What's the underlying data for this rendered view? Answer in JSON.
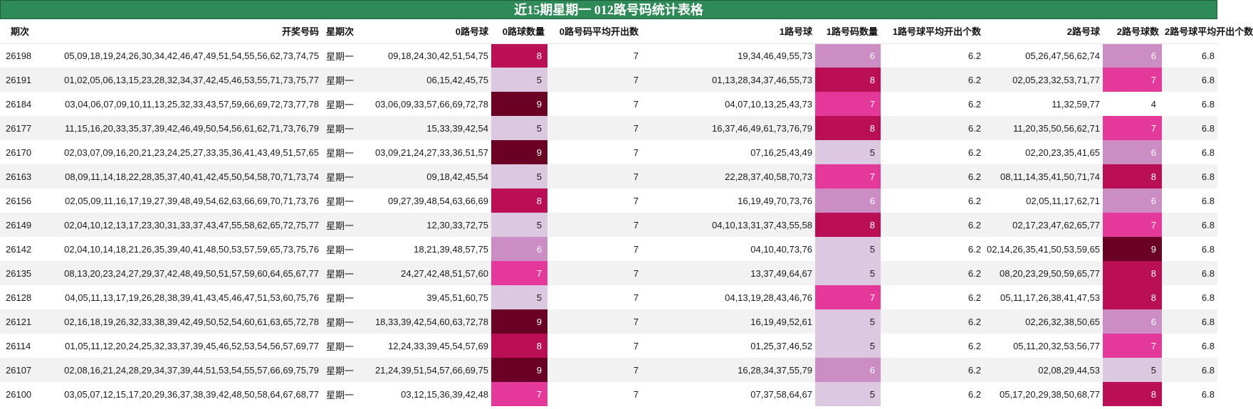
{
  "title": "近15期星期一 012路号码统计表格",
  "headers": [
    "期次",
    "开奖号码",
    "星期次",
    "0路号球",
    "0路球数量",
    "0路号码平均开出数",
    "1路号球",
    "1路号码数量",
    "1路号球平均开出个数",
    "2路号球",
    "2路号球数",
    "2路号球平均开出个数"
  ],
  "heat_colors": {
    "4": "#ffffff",
    "5": "#dcc8e0",
    "6": "#cc8cc4",
    "7": "#e4399a",
    "8": "#bb0f55",
    "9": "#6a0023"
  },
  "heat_text_light": "#ffffff",
  "heat_text_dark": "#1a1a1a",
  "rows": [
    {
      "period": "26198",
      "numbers": "05,09,18,19,24,26,30,34,42,46,47,49,51,54,55,56,62,73,74,75",
      "weekday": "星期一",
      "r0": "09,18,24,30,42,51,54,75",
      "r0_count": "8",
      "r0_avg": "7",
      "r1": "19,34,46,49,55,73",
      "r1_count": "6",
      "r1_avg": "6.2",
      "r2": "05,26,47,56,62,74",
      "r2_count": "6",
      "r2_avg": "6.8"
    },
    {
      "period": "26191",
      "numbers": "01,02,05,06,13,15,23,28,32,34,37,42,45,46,53,55,71,73,75,77",
      "weekday": "星期一",
      "r0": "06,15,42,45,75",
      "r0_count": "5",
      "r0_avg": "7",
      "r1": "01,13,28,34,37,46,55,73",
      "r1_count": "8",
      "r1_avg": "6.2",
      "r2": "02,05,23,32,53,71,77",
      "r2_count": "7",
      "r2_avg": "6.8"
    },
    {
      "period": "26184",
      "numbers": "03,04,06,07,09,10,11,13,25,32,33,43,57,59,66,69,72,73,77,78",
      "weekday": "星期一",
      "r0": "03,06,09,33,57,66,69,72,78",
      "r0_count": "9",
      "r0_avg": "7",
      "r1": "04,07,10,13,25,43,73",
      "r1_count": "7",
      "r1_avg": "6.2",
      "r2": "11,32,59,77",
      "r2_count": "4",
      "r2_avg": "6.8"
    },
    {
      "period": "26177",
      "numbers": "11,15,16,20,33,35,37,39,42,46,49,50,54,56,61,62,71,73,76,79",
      "weekday": "星期一",
      "r0": "15,33,39,42,54",
      "r0_count": "5",
      "r0_avg": "7",
      "r1": "16,37,46,49,61,73,76,79",
      "r1_count": "8",
      "r1_avg": "6.2",
      "r2": "11,20,35,50,56,62,71",
      "r2_count": "7",
      "r2_avg": "6.8"
    },
    {
      "period": "26170",
      "numbers": "02,03,07,09,16,20,21,23,24,25,27,33,35,36,41,43,49,51,57,65",
      "weekday": "星期一",
      "r0": "03,09,21,24,27,33,36,51,57",
      "r0_count": "9",
      "r0_avg": "7",
      "r1": "07,16,25,43,49",
      "r1_count": "5",
      "r1_avg": "6.2",
      "r2": "02,20,23,35,41,65",
      "r2_count": "6",
      "r2_avg": "6.8"
    },
    {
      "period": "26163",
      "numbers": "08,09,11,14,18,22,28,35,37,40,41,42,45,50,54,58,70,71,73,74",
      "weekday": "星期一",
      "r0": "09,18,42,45,54",
      "r0_count": "5",
      "r0_avg": "7",
      "r1": "22,28,37,40,58,70,73",
      "r1_count": "7",
      "r1_avg": "6.2",
      "r2": "08,11,14,35,41,50,71,74",
      "r2_count": "8",
      "r2_avg": "6.8"
    },
    {
      "period": "26156",
      "numbers": "02,05,09,11,16,17,19,27,39,48,49,54,62,63,66,69,70,71,73,76",
      "weekday": "星期一",
      "r0": "09,27,39,48,54,63,66,69",
      "r0_count": "8",
      "r0_avg": "7",
      "r1": "16,19,49,70,73,76",
      "r1_count": "6",
      "r1_avg": "6.2",
      "r2": "02,05,11,17,62,71",
      "r2_count": "6",
      "r2_avg": "6.8"
    },
    {
      "period": "26149",
      "numbers": "02,04,10,12,13,17,23,30,31,33,37,43,47,55,58,62,65,72,75,77",
      "weekday": "星期一",
      "r0": "12,30,33,72,75",
      "r0_count": "5",
      "r0_avg": "7",
      "r1": "04,10,13,31,37,43,55,58",
      "r1_count": "8",
      "r1_avg": "6.2",
      "r2": "02,17,23,47,62,65,77",
      "r2_count": "7",
      "r2_avg": "6.8"
    },
    {
      "period": "26142",
      "numbers": "02,04,10,14,18,21,26,35,39,40,41,48,50,53,57,59,65,73,75,76",
      "weekday": "星期一",
      "r0": "18,21,39,48,57,75",
      "r0_count": "6",
      "r0_avg": "7",
      "r1": "04,10,40,73,76",
      "r1_count": "5",
      "r1_avg": "6.2",
      "r2": "02,14,26,35,41,50,53,59,65",
      "r2_count": "9",
      "r2_avg": "6.8"
    },
    {
      "period": "26135",
      "numbers": "08,13,20,23,24,27,29,37,42,48,49,50,51,57,59,60,64,65,67,77",
      "weekday": "星期一",
      "r0": "24,27,42,48,51,57,60",
      "r0_count": "7",
      "r0_avg": "7",
      "r1": "13,37,49,64,67",
      "r1_count": "5",
      "r1_avg": "6.2",
      "r2": "08,20,23,29,50,59,65,77",
      "r2_count": "8",
      "r2_avg": "6.8"
    },
    {
      "period": "26128",
      "numbers": "04,05,11,13,17,19,26,28,38,39,41,43,45,46,47,51,53,60,75,76",
      "weekday": "星期一",
      "r0": "39,45,51,60,75",
      "r0_count": "5",
      "r0_avg": "7",
      "r1": "04,13,19,28,43,46,76",
      "r1_count": "7",
      "r1_avg": "6.2",
      "r2": "05,11,17,26,38,41,47,53",
      "r2_count": "8",
      "r2_avg": "6.8"
    },
    {
      "period": "26121",
      "numbers": "02,16,18,19,26,32,33,38,39,42,49,50,52,54,60,61,63,65,72,78",
      "weekday": "星期一",
      "r0": "18,33,39,42,54,60,63,72,78",
      "r0_count": "9",
      "r0_avg": "7",
      "r1": "16,19,49,52,61",
      "r1_count": "5",
      "r1_avg": "6.2",
      "r2": "02,26,32,38,50,65",
      "r2_count": "6",
      "r2_avg": "6.8"
    },
    {
      "period": "26114",
      "numbers": "01,05,11,12,20,24,25,32,33,37,39,45,46,52,53,54,56,57,69,77",
      "weekday": "星期一",
      "r0": "12,24,33,39,45,54,57,69",
      "r0_count": "8",
      "r0_avg": "7",
      "r1": "01,25,37,46,52",
      "r1_count": "5",
      "r1_avg": "6.2",
      "r2": "05,11,20,32,53,56,77",
      "r2_count": "7",
      "r2_avg": "6.8"
    },
    {
      "period": "26107",
      "numbers": "02,08,16,21,24,28,29,34,37,39,44,51,53,54,55,57,66,69,75,79",
      "weekday": "星期一",
      "r0": "21,24,39,51,54,57,66,69,75",
      "r0_count": "9",
      "r0_avg": "7",
      "r1": "16,28,34,37,55,79",
      "r1_count": "6",
      "r1_avg": "6.2",
      "r2": "02,08,29,44,53",
      "r2_count": "5",
      "r2_avg": "6.8"
    },
    {
      "period": "26100",
      "numbers": "03,05,07,12,15,17,20,29,36,37,38,39,42,48,50,58,64,67,68,77",
      "weekday": "星期一",
      "r0": "03,12,15,36,39,42,48",
      "r0_count": "7",
      "r0_avg": "7",
      "r1": "07,37,58,64,67",
      "r1_count": "5",
      "r1_avg": "6.2",
      "r2": "05,17,20,29,38,50,68,77",
      "r2_count": "8",
      "r2_avg": "6.8"
    }
  ]
}
